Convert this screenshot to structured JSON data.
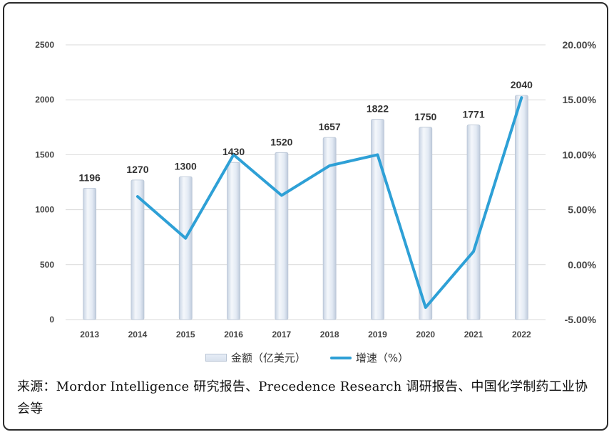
{
  "chart_data": {
    "type": "bar+line",
    "categories": [
      "2013",
      "2014",
      "2015",
      "2016",
      "2017",
      "2018",
      "2019",
      "2020",
      "2021",
      "2022"
    ],
    "series": [
      {
        "name": "金额（亿美元）",
        "type": "bar",
        "axis": "left",
        "values": [
          1196,
          1270,
          1300,
          1430,
          1520,
          1657,
          1822,
          1750,
          1771,
          2040
        ]
      },
      {
        "name": "增速（%）",
        "type": "line",
        "axis": "right",
        "values": [
          null,
          6.2,
          2.4,
          10.0,
          6.3,
          9.0,
          10.0,
          -3.9,
          1.2,
          15.2
        ]
      }
    ],
    "left_axis": {
      "min": 0,
      "max": 2500,
      "ticks": [
        "0",
        "500",
        "1000",
        "1500",
        "2000",
        "2500"
      ]
    },
    "right_axis": {
      "min": -5,
      "max": 20,
      "ticks": [
        "-5.00%",
        "0.00%",
        "5.00%",
        "10.00%",
        "15.00%",
        "20.00%"
      ]
    },
    "data_labels": [
      "1196",
      "1270",
      "1300",
      "1430",
      "1520",
      "1657",
      "1822",
      "1750",
      "1771",
      "2040"
    ],
    "legend": {
      "position": "bottom",
      "entries": [
        "金额（亿美元）",
        "增速（%）"
      ]
    },
    "grid": true,
    "colors": {
      "line": "#2ea0d6",
      "grid": "#d9d9d9",
      "bar_edge": "#b8c4d4"
    }
  },
  "legend_labels": {
    "bar": "金额（亿美元）",
    "line": "增速（%）"
  },
  "source_text": "来源：Mordor Intelligence 研究报告、Precedence Research 调研报告、中国化学制药工业协会等"
}
